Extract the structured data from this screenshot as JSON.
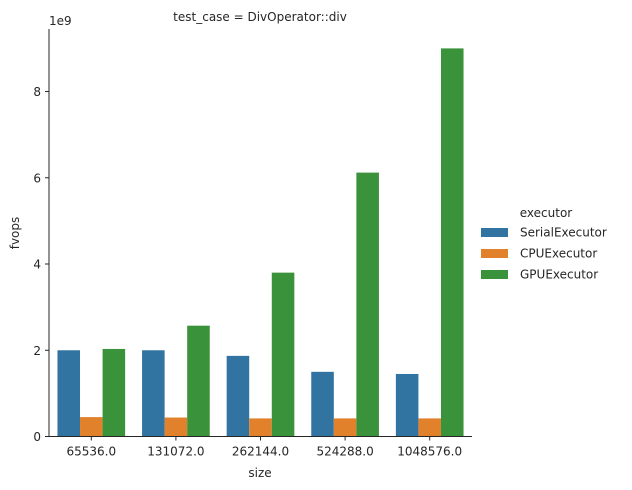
{
  "chart_data": {
    "type": "bar",
    "title": "test_case = DivOperator::div",
    "xlabel": "size",
    "ylabel": "fvops",
    "y_offset_label": "1e9",
    "categories": [
      "65536.0",
      "131072.0",
      "262144.0",
      "524288.0",
      "1048576.0"
    ],
    "ylim": [
      0,
      9.45
    ],
    "y_scale_multiplier": 1000000000,
    "yticks": [
      0,
      2,
      4,
      6,
      8
    ],
    "ytick_labels": [
      "0",
      "2",
      "4",
      "6",
      "8"
    ],
    "grid": false,
    "legend_title": "executor",
    "legend_position": "right",
    "series": [
      {
        "name": "SerialExecutor",
        "color": "#3274a1",
        "values": [
          2.0,
          2.0,
          1.87,
          1.5,
          1.45
        ]
      },
      {
        "name": "CPUExecutor",
        "color": "#e1812c",
        "values": [
          0.45,
          0.44,
          0.42,
          0.42,
          0.42
        ]
      },
      {
        "name": "GPUExecutor",
        "color": "#3a923a",
        "values": [
          2.03,
          2.57,
          3.8,
          6.12,
          9.0
        ]
      }
    ]
  }
}
